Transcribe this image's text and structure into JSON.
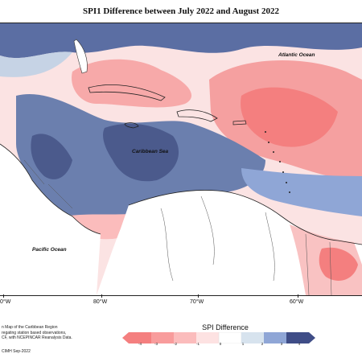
{
  "title": "SPI1 Difference between July 2022 and August 2022",
  "map": {
    "labels": {
      "atlantic": "Atlantic Ocean",
      "caribbean": "Caribbean Sea",
      "pacific": "Pacific Ocean"
    },
    "longitudes": [
      "0°W",
      "80°W",
      "70°W",
      "60°W"
    ]
  },
  "notes": [
    "n Map of the Caribbean Region",
    "regating station based observations,",
    "CF, with NCEPINCAR Reanalysis Data."
  ],
  "credit": "CIMH Sep-2022",
  "legend": {
    "title": "SPI Difference",
    "ticks": [
      "-4",
      "-3",
      "-2",
      "-1",
      "0",
      "1",
      "2",
      "3",
      "4"
    ],
    "colors": [
      "#f47f7f",
      "#f89c9c",
      "#fbbcbc",
      "#fde2e2",
      "#ffffff",
      "#d7e3ee",
      "#8fa6d6",
      "#5f78a8",
      "#3f4d87"
    ]
  }
}
